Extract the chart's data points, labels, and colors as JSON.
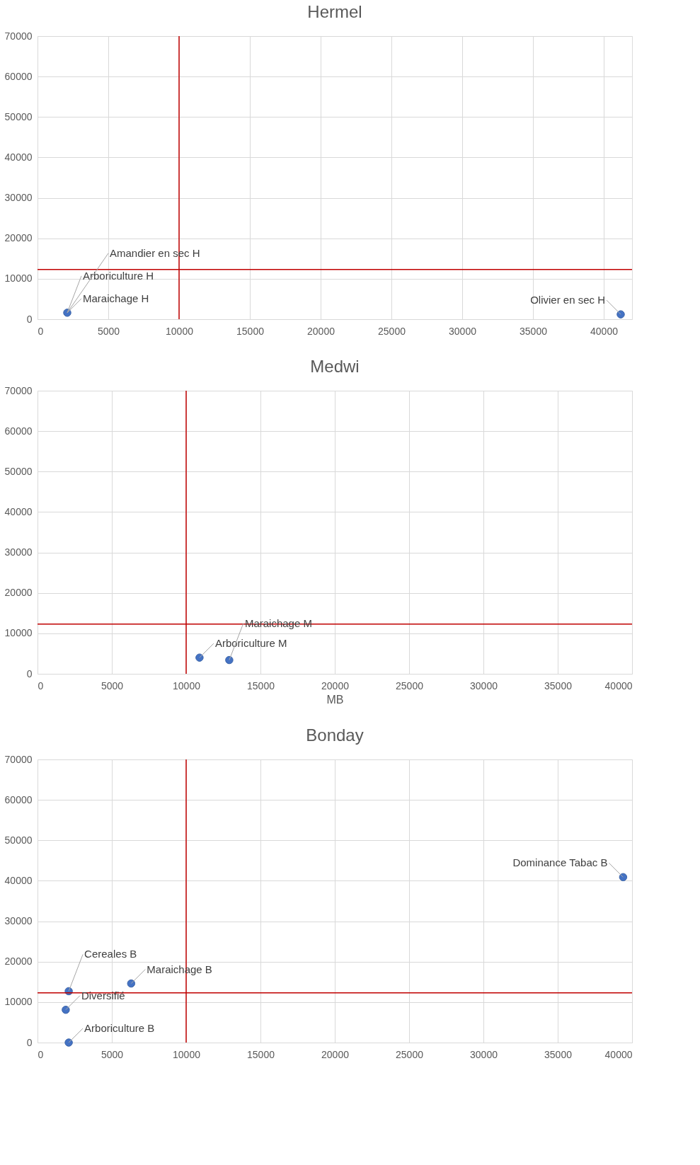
{
  "chart_data": [
    {
      "type": "scatter",
      "title": "Hermel",
      "x": [
        2100,
        41200
      ],
      "values": [
        1600,
        1200
      ],
      "color": "#4472c4",
      "xlim": [
        0,
        42000
      ],
      "xticks": [
        0,
        5000,
        10000,
        15000,
        20000,
        25000,
        30000,
        35000,
        40000
      ],
      "ylim": [
        0,
        70000
      ],
      "yticks": [
        0,
        10000,
        20000,
        30000,
        40000,
        50000,
        60000,
        70000
      ],
      "grid": true,
      "ref_lines": [
        {
          "axis": "x",
          "value": 10000,
          "color": "#c00000"
        },
        {
          "axis": "y",
          "value": 12300,
          "color": "#c00000"
        }
      ],
      "annotations": [
        {
          "text": "Maraichage H",
          "x": 2100,
          "y": 1600
        },
        {
          "text": "Arboriculture H",
          "x": 2100,
          "y": 1600
        },
        {
          "text": "Amandier en sec H",
          "x": 2100,
          "y": 1600
        },
        {
          "text": "Olivier en sec H",
          "x": 41200,
          "y": 1200
        }
      ]
    },
    {
      "type": "scatter",
      "title": "Medwi",
      "xlabel": "MB",
      "x": [
        10900,
        12900
      ],
      "values": [
        4000,
        3400
      ],
      "color": "#4472c4",
      "xlim": [
        0,
        40000
      ],
      "xticks": [
        0,
        5000,
        10000,
        15000,
        20000,
        25000,
        30000,
        35000,
        40000
      ],
      "ylim": [
        0,
        70000
      ],
      "yticks": [
        0,
        10000,
        20000,
        30000,
        40000,
        50000,
        60000,
        70000
      ],
      "grid": true,
      "ref_lines": [
        {
          "axis": "x",
          "value": 10000,
          "color": "#c00000"
        },
        {
          "axis": "y",
          "value": 12300,
          "color": "#c00000"
        }
      ],
      "annotations": [
        {
          "text": "Arboriculture M",
          "x": 10900,
          "y": 4000
        },
        {
          "text": "Maraichage M",
          "x": 12900,
          "y": 3400
        }
      ]
    },
    {
      "type": "scatter",
      "title": "Bonday",
      "x": [
        39400,
        2100,
        1900,
        2100,
        6300
      ],
      "values": [
        40900,
        12700,
        8100,
        0,
        14600
      ],
      "color": "#4472c4",
      "xlim": [
        0,
        40000
      ],
      "xticks": [
        0,
        5000,
        10000,
        15000,
        20000,
        25000,
        30000,
        35000,
        40000
      ],
      "ylim": [
        0,
        70000
      ],
      "yticks": [
        0,
        10000,
        20000,
        30000,
        40000,
        50000,
        60000,
        70000
      ],
      "grid": true,
      "ref_lines": [
        {
          "axis": "x",
          "value": 10000,
          "color": "#c00000"
        },
        {
          "axis": "y",
          "value": 12300,
          "color": "#c00000"
        }
      ],
      "annotations": [
        {
          "text": "Dominance Tabac B",
          "x": 39400,
          "y": 40900
        },
        {
          "text": "Cereales B",
          "x": 2100,
          "y": 12700
        },
        {
          "text": "Diversifié",
          "x": 1900,
          "y": 8100
        },
        {
          "text": "Arboriculture B",
          "x": 2100,
          "y": 0
        },
        {
          "text": "Maraichage B",
          "x": 6300,
          "y": 14600
        }
      ]
    }
  ]
}
